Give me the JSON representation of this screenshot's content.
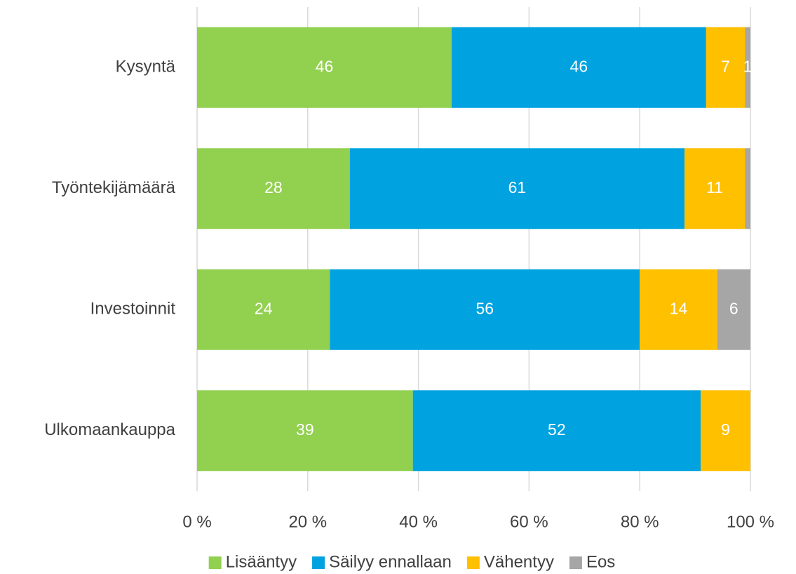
{
  "chart_data": {
    "type": "stacked-bar-horizontal",
    "categories": [
      "Kysyntä",
      "Työntekijämäärä",
      "Investoinnit",
      "Ulkomaankauppa"
    ],
    "series": [
      {
        "name": "Lisääntyy",
        "color": "#92d050",
        "values": [
          46,
          27.6,
          24,
          39
        ],
        "value_labels": [
          "46",
          "28",
          "24",
          "39"
        ]
      },
      {
        "name": "Säilyy ennallaan",
        "color": "#00a2e0",
        "values": [
          46,
          60.5,
          56,
          52
        ],
        "value_labels": [
          "46",
          "61",
          "56",
          "52"
        ]
      },
      {
        "name": "Vähentyy",
        "color": "#ffc000",
        "values": [
          7,
          10.9,
          14,
          9
        ],
        "value_labels": [
          "7",
          "11",
          "14",
          "9"
        ]
      },
      {
        "name": "Eos",
        "color": "#a6a6a6",
        "values": [
          1,
          1.0,
          6,
          0
        ],
        "value_labels": [
          "1",
          null,
          "6",
          null
        ]
      }
    ],
    "xlim": [
      0,
      100
    ],
    "xticks": [
      {
        "value": 0,
        "label": "0 %"
      },
      {
        "value": 20,
        "label": "20 %"
      },
      {
        "value": 40,
        "label": "40 %"
      },
      {
        "value": 60,
        "label": "60 %"
      },
      {
        "value": 80,
        "label": "80 %"
      },
      {
        "value": 100,
        "label": "100 %"
      }
    ],
    "grid": true,
    "legend": "bottom"
  }
}
